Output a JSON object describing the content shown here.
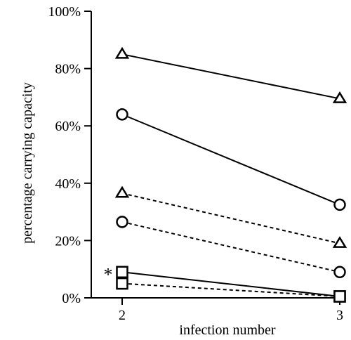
{
  "chart_data": {
    "type": "line",
    "title": "",
    "xlabel": "infection number",
    "ylabel": "percentage carrying capacity",
    "x_ticks": [
      "2",
      "3"
    ],
    "y_ticks": [
      "0%",
      "20%",
      "40%",
      "60%",
      "80%",
      "100%"
    ],
    "xlim": [
      2,
      3
    ],
    "ylim": [
      0,
      100
    ],
    "grid": false,
    "legend": "none",
    "series": [
      {
        "marker": "triangle",
        "line": "solid",
        "x": [
          2,
          3
        ],
        "y": [
          85,
          69.5
        ]
      },
      {
        "marker": "circle",
        "line": "solid",
        "x": [
          2,
          3
        ],
        "y": [
          64,
          32.5
        ]
      },
      {
        "marker": "triangle",
        "line": "dashed",
        "x": [
          2,
          3
        ],
        "y": [
          36.5,
          19
        ]
      },
      {
        "marker": "circle",
        "line": "dashed",
        "x": [
          2,
          3
        ],
        "y": [
          26.5,
          9
        ]
      },
      {
        "marker": "square",
        "line": "solid",
        "x": [
          2,
          3
        ],
        "y": [
          9,
          0.5
        ]
      },
      {
        "marker": "square",
        "line": "dashed",
        "x": [
          2,
          3
        ],
        "y": [
          5,
          0.5
        ]
      }
    ],
    "annotations": [
      {
        "text": "*",
        "x": 2,
        "y": 9
      }
    ],
    "colors": {
      "line": "#000000",
      "marker_fill": "#ffffff"
    }
  }
}
